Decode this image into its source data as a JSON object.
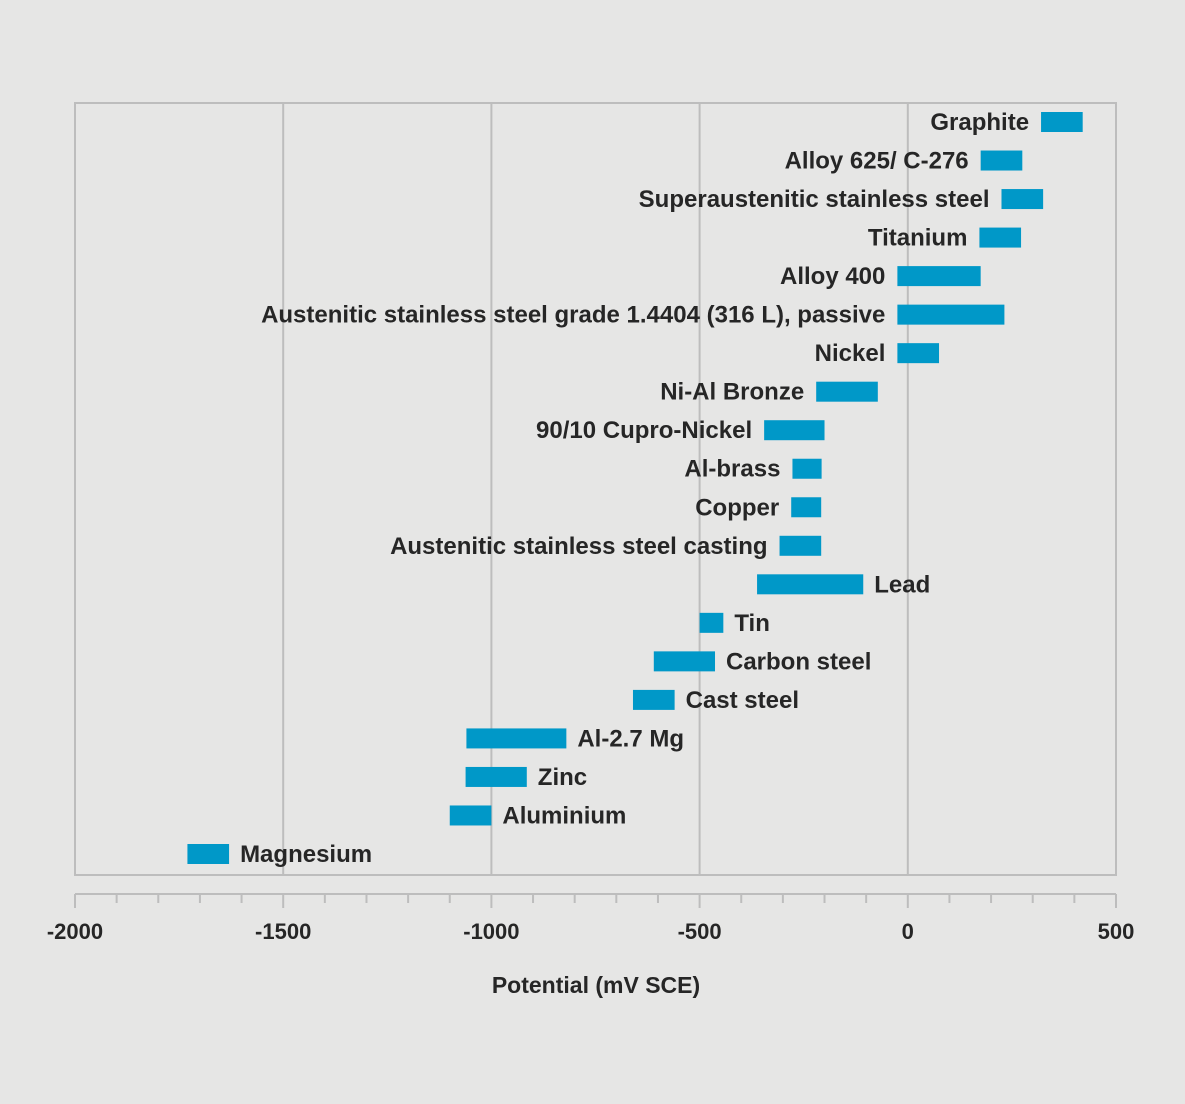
{
  "chart_data": {
    "type": "bar",
    "orientation": "horizontal-range",
    "title": "",
    "xlabel": "Potential (mV SCE)",
    "ylabel": "",
    "xlim": [
      -2000,
      500
    ],
    "x_ticks": [
      -2000,
      -1500,
      -1000,
      -500,
      0,
      500
    ],
    "x_tick_labels": [
      "-2000",
      "-1500",
      "-1000",
      "-500",
      "0",
      "500"
    ],
    "minor_tick_step": 100,
    "grid": "vertical",
    "bar_color": "#0098c8",
    "series": [
      {
        "label": "Graphite",
        "min": 320,
        "max": 420,
        "label_side": "left"
      },
      {
        "label": "Alloy 625/ C-276",
        "min": 175,
        "max": 275,
        "label_side": "left"
      },
      {
        "label": "Superaustenitic stainless steel",
        "min": 225,
        "max": 325,
        "label_side": "left"
      },
      {
        "label": "Titanium",
        "min": 172,
        "max": 272,
        "label_side": "left"
      },
      {
        "label": "Alloy 400",
        "min": -25,
        "max": 175,
        "label_side": "left"
      },
      {
        "label": "Austenitic stainless steel grade 1.4404 (316 L), passive",
        "min": -25,
        "max": 232,
        "label_side": "left"
      },
      {
        "label": "Nickel",
        "min": -25,
        "max": 75,
        "label_side": "left"
      },
      {
        "label": "Ni-Al Bronze",
        "min": -220,
        "max": -72,
        "label_side": "left"
      },
      {
        "label": "90/10 Cupro-Nickel",
        "min": -345,
        "max": -200,
        "label_side": "left"
      },
      {
        "label": "Al-brass",
        "min": -277,
        "max": -207,
        "label_side": "left"
      },
      {
        "label": "Copper",
        "min": -280,
        "max": -208,
        "label_side": "left"
      },
      {
        "label": "Austenitic stainless steel casting",
        "min": -308,
        "max": -208,
        "label_side": "left"
      },
      {
        "label": "Lead",
        "min": -362,
        "max": -107,
        "label_side": "right"
      },
      {
        "label": "Tin",
        "min": -500,
        "max": -443,
        "label_side": "right"
      },
      {
        "label": "Carbon steel",
        "min": -610,
        "max": -463,
        "label_side": "right"
      },
      {
        "label": "Cast steel",
        "min": -660,
        "max": -560,
        "label_side": "right"
      },
      {
        "label": "Al-2.7 Mg",
        "min": -1060,
        "max": -820,
        "label_side": "right"
      },
      {
        "label": "Zinc",
        "min": -1062,
        "max": -915,
        "label_side": "right"
      },
      {
        "label": "Aluminium",
        "min": -1100,
        "max": -1000,
        "label_side": "right"
      },
      {
        "label": "Magnesium",
        "min": -1730,
        "max": -1630,
        "label_side": "right"
      }
    ]
  }
}
